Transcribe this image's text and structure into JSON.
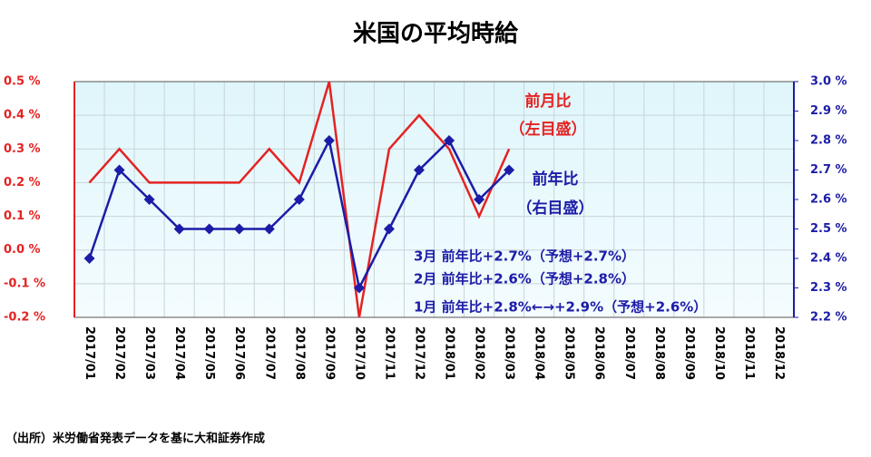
{
  "chart_data": {
    "type": "line",
    "title": "米国の平均時給",
    "categories": [
      "2017/01",
      "2017/02",
      "2017/03",
      "2017/04",
      "2017/05",
      "2017/06",
      "2017/07",
      "2017/08",
      "2017/09",
      "2017/10",
      "2017/11",
      "2017/12",
      "2018/01",
      "2018/02",
      "2018/03",
      "2018/04",
      "2018/05",
      "2018/06",
      "2018/07",
      "2018/08",
      "2018/09",
      "2018/10",
      "2018/11",
      "2018/12"
    ],
    "series": [
      {
        "name": "前月比",
        "color": "#e52222",
        "axis": "y",
        "values": [
          0.2,
          0.3,
          0.2,
          0.2,
          0.2,
          0.2,
          0.3,
          0.2,
          0.5,
          -0.2,
          0.3,
          0.4,
          0.3,
          0.1,
          0.3,
          null,
          null,
          null,
          null,
          null,
          null,
          null,
          null,
          null
        ]
      },
      {
        "name": "前年比",
        "color": "#1c1ca8",
        "axis": "y2",
        "values": [
          2.4,
          2.7,
          2.6,
          2.5,
          2.5,
          2.5,
          2.5,
          2.6,
          2.8,
          2.3,
          2.5,
          2.7,
          2.8,
          2.6,
          2.7,
          null,
          null,
          null,
          null,
          null,
          null,
          null,
          null,
          null
        ]
      }
    ],
    "ylim": [
      -0.2,
      0.5
    ],
    "yticks": [
      {
        "value": -0.2,
        "label": "-0.2 %"
      },
      {
        "value": -0.1,
        "label": "-0.1 %"
      },
      {
        "value": 0.0,
        "label": "0.0 %"
      },
      {
        "value": 0.1,
        "label": "0.1 %"
      },
      {
        "value": 0.2,
        "label": "0.2 %"
      },
      {
        "value": 0.3,
        "label": "0.3 %"
      },
      {
        "value": 0.4,
        "label": "0.4 %"
      },
      {
        "value": 0.5,
        "label": "0.5 %"
      }
    ],
    "y2lim": [
      2.2,
      3.0
    ],
    "y2ticks": [
      {
        "value": 2.2,
        "label": "2.2 %"
      },
      {
        "value": 2.3,
        "label": "2.3 %"
      },
      {
        "value": 2.4,
        "label": "2.4 %"
      },
      {
        "value": 2.5,
        "label": "2.5 %"
      },
      {
        "value": 2.6,
        "label": "2.6 %"
      },
      {
        "value": 2.7,
        "label": "2.7 %"
      },
      {
        "value": 2.8,
        "label": "2.8 %"
      },
      {
        "value": 2.9,
        "label": "2.9 %"
      },
      {
        "value": 3.0,
        "label": "3.0 %"
      }
    ],
    "grid": true,
    "annotations": [
      "（左目盛）",
      "（右目盛）",
      "3月  前年比+2.7%（予想+2.7%）",
      "2月  前年比+2.6%（予想+2.8%）",
      "1月  前年比+2.8%←→+2.9%（予想+2.6%）"
    ],
    "source": "（出所）米労働省発表データを基に大和証券作成"
  }
}
